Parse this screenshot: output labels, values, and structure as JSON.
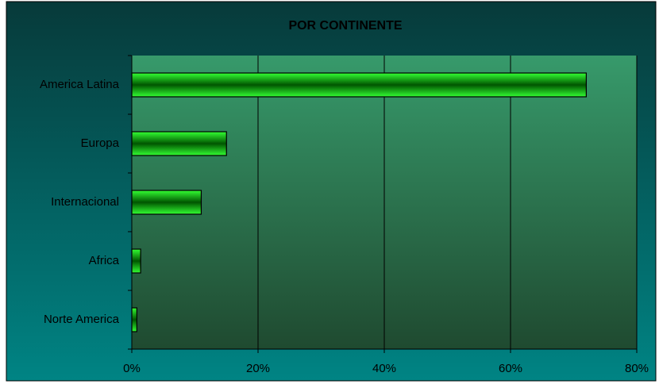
{
  "chart_data": {
    "type": "barh",
    "title": "POR CONTINENTE",
    "categories": [
      "America Latina",
      "Europa",
      "Internacional",
      "Africa",
      "Norte America"
    ],
    "values": [
      72,
      15,
      11,
      1.4,
      0.8
    ],
    "color": "#00ff00",
    "xlim": [
      0,
      80
    ],
    "xticks": [
      {
        "value": 0,
        "label": "0%"
      },
      {
        "value": 20,
        "label": "20%"
      },
      {
        "value": 40,
        "label": "40%"
      },
      {
        "value": 60,
        "label": "60%"
      },
      {
        "value": 80,
        "label": "80%"
      }
    ],
    "grid": true
  }
}
